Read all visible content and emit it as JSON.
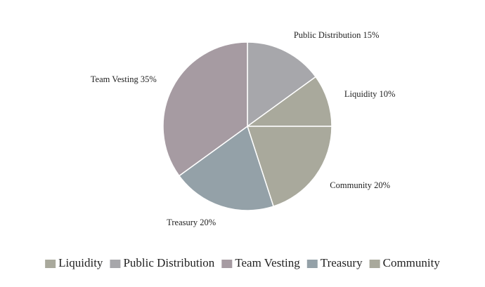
{
  "chart_data": {
    "type": "pie",
    "categories": [
      "Public Distribution",
      "Liquidity",
      "Community",
      "Treasury",
      "Team Vesting"
    ],
    "values": [
      15,
      10,
      20,
      20,
      35
    ],
    "value_labels": [
      "15%",
      "10%",
      "20%",
      "20%",
      "35%"
    ],
    "colors": [
      "#a7a7ab",
      "#a9a99c",
      "#a9a99c",
      "#94a1a8",
      "#a69ba2"
    ],
    "legend": [
      "Liquidity",
      "Public Distribution",
      "Team Vesting",
      "Treasury",
      "Community"
    ],
    "legend_position": "bottom"
  }
}
